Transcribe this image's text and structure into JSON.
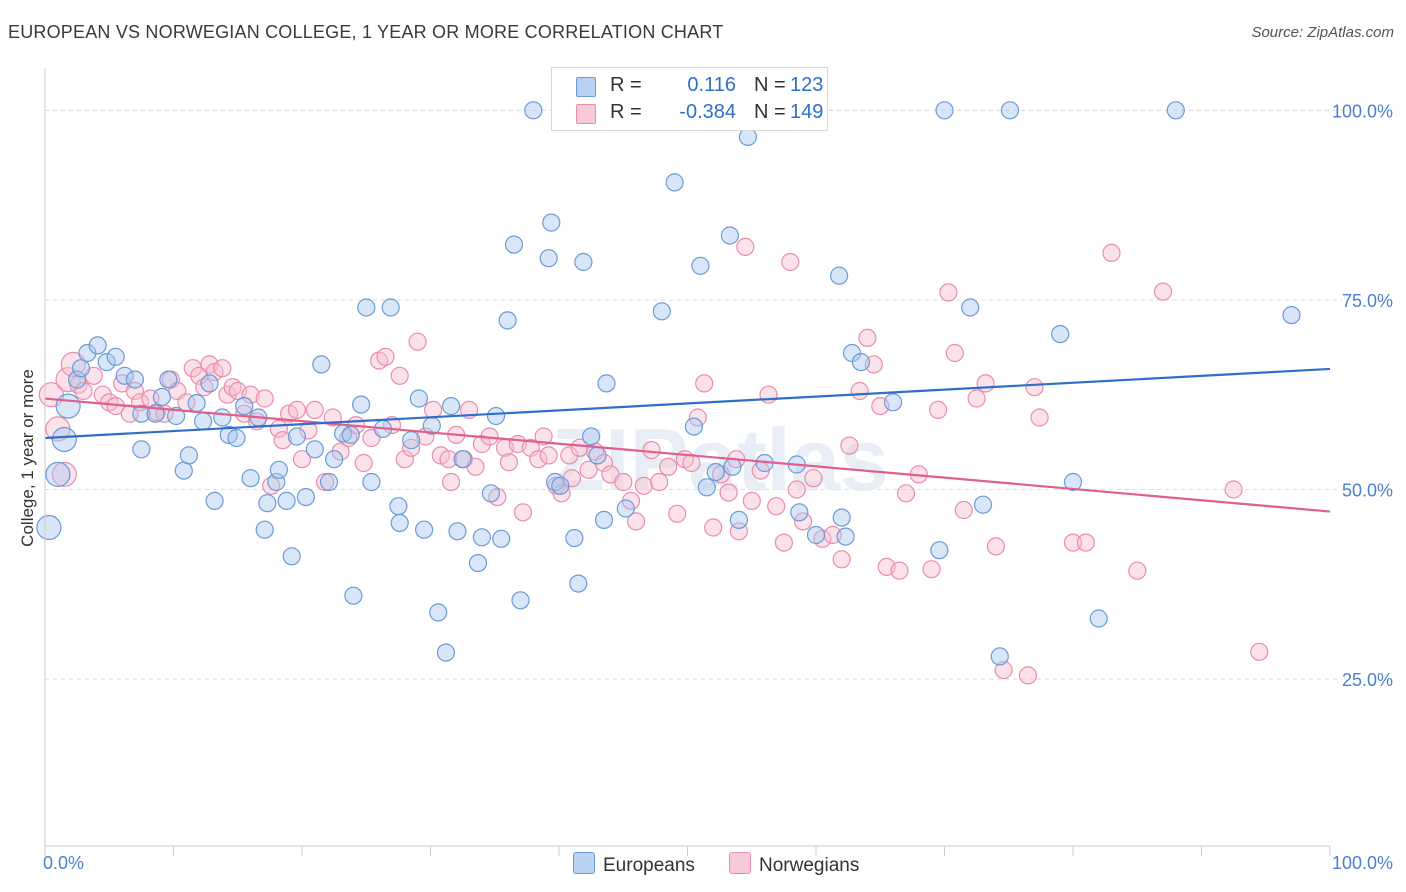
{
  "title": "EUROPEAN VS NORWEGIAN COLLEGE, 1 YEAR OR MORE CORRELATION CHART",
  "source": "Source: ZipAtlas.com",
  "watermark": "ZIPatlas",
  "legend_top": {
    "rows": [
      {
        "r_label": "R =",
        "r_value": "0.116",
        "n_label": "N =",
        "n_value": "123"
      },
      {
        "r_label": "R =",
        "r_value": "-0.384",
        "n_label": "N =",
        "n_value": "149"
      }
    ]
  },
  "legend_bottom": {
    "europeans": "Europeans",
    "norwegians": "Norwegians"
  },
  "colors": {
    "europeans_fill": "#a9c8ef",
    "europeans_stroke": "#6a9bd8",
    "europeans_line": "#2f6fca",
    "norwegians_fill": "#f6bfd0",
    "norwegians_stroke": "#e98dab",
    "norwegians_line": "#e05f8c",
    "tick_label": "#4a7fcf",
    "grid": "#dcdcdc"
  },
  "chart_data": {
    "type": "scatter",
    "title": "EUROPEAN VS NORWEGIAN COLLEGE, 1 YEAR OR MORE CORRELATION CHART",
    "xlabel": "",
    "ylabel": "College, 1 year or more",
    "xlim": [
      0,
      100
    ],
    "ylim": [
      3,
      104
    ],
    "x_tick_labels": [
      "0.0%",
      "100.0%"
    ],
    "y_ticks": [
      25,
      50,
      75,
      100
    ],
    "y_tick_labels": [
      "25.0%",
      "50.0%",
      "75.0%",
      "100.0%"
    ],
    "grid": true,
    "legend_position": "top-center",
    "series": [
      {
        "name": "Europeans",
        "trend": {
          "x": [
            0,
            100
          ],
          "y": [
            56.8,
            65.9
          ]
        },
        "points": [
          [
            0.3,
            45
          ],
          [
            1.5,
            56.6
          ],
          [
            1.0,
            52
          ],
          [
            1.8,
            61
          ],
          [
            2.5,
            64.5
          ],
          [
            2.8,
            66
          ],
          [
            3.3,
            68
          ],
          [
            4.1,
            69
          ],
          [
            4.8,
            66.8
          ],
          [
            5.5,
            67.5
          ],
          [
            6.2,
            65
          ],
          [
            7.0,
            64.5
          ],
          [
            7.5,
            55.3
          ],
          [
            7.5,
            60
          ],
          [
            8.6,
            60
          ],
          [
            9.1,
            62.2
          ],
          [
            9.6,
            64.5
          ],
          [
            10.2,
            59.7
          ],
          [
            10.8,
            52.5
          ],
          [
            11.2,
            54.5
          ],
          [
            11.8,
            61.4
          ],
          [
            12.3,
            59
          ],
          [
            12.8,
            64
          ],
          [
            13.2,
            48.5
          ],
          [
            13.8,
            59.5
          ],
          [
            14.3,
            57.2
          ],
          [
            14.9,
            56.8
          ],
          [
            15.5,
            61
          ],
          [
            16.0,
            51.5
          ],
          [
            16.6,
            59.5
          ],
          [
            17.1,
            44.7
          ],
          [
            17.3,
            48.2
          ],
          [
            18.0,
            51
          ],
          [
            18.2,
            52.6
          ],
          [
            18.8,
            48.5
          ],
          [
            19.2,
            41.2
          ],
          [
            19.6,
            57
          ],
          [
            20.3,
            49
          ],
          [
            21.0,
            55.3
          ],
          [
            21.5,
            66.5
          ],
          [
            22.1,
            51
          ],
          [
            22.5,
            54
          ],
          [
            23.2,
            57.4
          ],
          [
            23.8,
            57.2
          ],
          [
            24.0,
            36
          ],
          [
            24.6,
            61.2
          ],
          [
            25.0,
            74
          ],
          [
            25.4,
            51
          ],
          [
            26.3,
            58
          ],
          [
            26.9,
            74
          ],
          [
            27.5,
            47.8
          ],
          [
            27.6,
            45.6
          ],
          [
            28.5,
            56.5
          ],
          [
            29.1,
            62
          ],
          [
            29.5,
            44.7
          ],
          [
            30.1,
            58.4
          ],
          [
            30.6,
            33.8
          ],
          [
            31.2,
            28.5
          ],
          [
            31.6,
            61
          ],
          [
            32.1,
            44.5
          ],
          [
            32.5,
            54
          ],
          [
            33.7,
            40.3
          ],
          [
            34.0,
            43.7
          ],
          [
            34.7,
            49.5
          ],
          [
            35.1,
            59.7
          ],
          [
            35.5,
            43.5
          ],
          [
            36.0,
            72.3
          ],
          [
            36.5,
            82.3
          ],
          [
            37.0,
            35.4
          ],
          [
            38.0,
            100
          ],
          [
            39.2,
            80.5
          ],
          [
            39.4,
            85.2
          ],
          [
            39.7,
            51
          ],
          [
            40.1,
            50.5
          ],
          [
            41.2,
            43.6
          ],
          [
            41.5,
            37.6
          ],
          [
            41.9,
            80
          ],
          [
            42.5,
            57
          ],
          [
            43.0,
            54.5
          ],
          [
            43.5,
            46
          ],
          [
            43.7,
            64
          ],
          [
            45.2,
            47.5
          ],
          [
            47.5,
            100
          ],
          [
            48.0,
            73.5
          ],
          [
            49.0,
            90.5
          ],
          [
            50.5,
            58.3
          ],
          [
            51.0,
            79.5
          ],
          [
            51.5,
            50.3
          ],
          [
            52.2,
            52.3
          ],
          [
            53.3,
            83.5
          ],
          [
            53.5,
            53
          ],
          [
            54.0,
            46
          ],
          [
            54.7,
            96.5
          ],
          [
            56.0,
            53.5
          ],
          [
            58.5,
            53.3
          ],
          [
            58.7,
            47
          ],
          [
            60.0,
            44
          ],
          [
            61.8,
            78.2
          ],
          [
            62.0,
            46.3
          ],
          [
            62.3,
            43.8
          ],
          [
            62.8,
            68
          ],
          [
            63.5,
            66.8
          ],
          [
            66.0,
            61.5
          ],
          [
            69.6,
            42
          ],
          [
            70.0,
            100
          ],
          [
            72.0,
            74
          ],
          [
            73.0,
            48
          ],
          [
            74.3,
            28
          ],
          [
            75.1,
            100
          ],
          [
            79.0,
            70.5
          ],
          [
            80.0,
            51
          ],
          [
            82.0,
            33
          ],
          [
            88.0,
            100
          ],
          [
            97.0,
            73
          ]
        ]
      },
      {
        "name": "Norwegians",
        "trend": {
          "x": [
            0,
            100
          ],
          "y": [
            62.0,
            47.1
          ]
        },
        "points": [
          [
            0.5,
            62.5
          ],
          [
            1.0,
            58
          ],
          [
            1.5,
            52
          ],
          [
            1.8,
            64.5
          ],
          [
            2.2,
            66.5
          ],
          [
            2.6,
            63.8
          ],
          [
            3.0,
            63
          ],
          [
            3.8,
            65
          ],
          [
            4.5,
            62.5
          ],
          [
            5.0,
            61.5
          ],
          [
            5.5,
            61
          ],
          [
            6.0,
            64
          ],
          [
            6.6,
            60
          ],
          [
            7.0,
            63
          ],
          [
            7.4,
            61.5
          ],
          [
            8.2,
            62
          ],
          [
            8.7,
            60.2
          ],
          [
            9.3,
            60
          ],
          [
            9.8,
            64.5
          ],
          [
            10.3,
            63
          ],
          [
            11.0,
            61.5
          ],
          [
            11.5,
            66
          ],
          [
            12.0,
            65
          ],
          [
            12.4,
            63.5
          ],
          [
            12.8,
            66.5
          ],
          [
            13.2,
            65.5
          ],
          [
            13.8,
            66
          ],
          [
            14.2,
            62.5
          ],
          [
            14.6,
            63.5
          ],
          [
            15.0,
            63
          ],
          [
            15.5,
            60
          ],
          [
            16.0,
            62.5
          ],
          [
            16.5,
            59
          ],
          [
            17.1,
            62
          ],
          [
            17.6,
            50.5
          ],
          [
            18.2,
            58
          ],
          [
            18.5,
            56.5
          ],
          [
            19.0,
            60
          ],
          [
            19.6,
            60.5
          ],
          [
            20.0,
            54
          ],
          [
            20.5,
            57.8
          ],
          [
            21.0,
            60.5
          ],
          [
            21.8,
            51
          ],
          [
            22.4,
            59.5
          ],
          [
            23.0,
            55
          ],
          [
            23.6,
            56.8
          ],
          [
            24.2,
            58.5
          ],
          [
            24.8,
            53.5
          ],
          [
            25.4,
            56.8
          ],
          [
            26.0,
            67
          ],
          [
            26.5,
            67.5
          ],
          [
            27.0,
            58.5
          ],
          [
            27.6,
            65
          ],
          [
            28.0,
            54
          ],
          [
            28.5,
            55.5
          ],
          [
            29.0,
            69.5
          ],
          [
            29.6,
            57
          ],
          [
            30.2,
            60.5
          ],
          [
            30.8,
            54.5
          ],
          [
            31.4,
            54
          ],
          [
            31.6,
            51
          ],
          [
            32.0,
            57.2
          ],
          [
            32.6,
            54
          ],
          [
            33.0,
            60.5
          ],
          [
            33.5,
            53
          ],
          [
            34.0,
            56
          ],
          [
            34.6,
            57
          ],
          [
            35.2,
            49
          ],
          [
            35.8,
            55.5
          ],
          [
            36.1,
            53.6
          ],
          [
            36.8,
            56
          ],
          [
            37.2,
            47
          ],
          [
            37.8,
            55.5
          ],
          [
            38.4,
            54
          ],
          [
            38.8,
            57
          ],
          [
            39.2,
            54.5
          ],
          [
            39.8,
            50.5
          ],
          [
            40.2,
            49.5
          ],
          [
            40.8,
            54.5
          ],
          [
            41.0,
            51.5
          ],
          [
            41.6,
            55.5
          ],
          [
            42.3,
            52.6
          ],
          [
            42.8,
            55
          ],
          [
            43.5,
            53.5
          ],
          [
            44.0,
            52
          ],
          [
            45.0,
            51
          ],
          [
            45.6,
            48.5
          ],
          [
            46.0,
            45.8
          ],
          [
            46.6,
            50.5
          ],
          [
            47.2,
            55.2
          ],
          [
            47.8,
            51
          ],
          [
            48.5,
            53
          ],
          [
            49.2,
            46.8
          ],
          [
            49.8,
            54
          ],
          [
            50.3,
            53.5
          ],
          [
            50.8,
            59.5
          ],
          [
            51.3,
            64
          ],
          [
            52.0,
            45
          ],
          [
            52.6,
            52
          ],
          [
            53.2,
            49.6
          ],
          [
            53.8,
            54
          ],
          [
            54.0,
            44.5
          ],
          [
            54.5,
            82
          ],
          [
            55.0,
            48.5
          ],
          [
            55.7,
            52.5
          ],
          [
            56.3,
            62.5
          ],
          [
            56.9,
            47.8
          ],
          [
            57.5,
            43
          ],
          [
            58.0,
            80
          ],
          [
            58.5,
            50
          ],
          [
            59.0,
            45.8
          ],
          [
            59.8,
            51.5
          ],
          [
            60.5,
            43.5
          ],
          [
            61.3,
            44
          ],
          [
            62.0,
            40.8
          ],
          [
            62.6,
            55.8
          ],
          [
            63.4,
            63
          ],
          [
            64.0,
            70
          ],
          [
            64.5,
            66.5
          ],
          [
            65.0,
            61
          ],
          [
            65.5,
            39.8
          ],
          [
            66.5,
            39.3
          ],
          [
            67.0,
            49.5
          ],
          [
            68.0,
            52
          ],
          [
            69.0,
            39.5
          ],
          [
            69.5,
            60.5
          ],
          [
            70.3,
            76
          ],
          [
            70.8,
            68
          ],
          [
            71.5,
            47.3
          ],
          [
            72.5,
            62
          ],
          [
            73.2,
            64
          ],
          [
            74.0,
            42.5
          ],
          [
            74.6,
            26.2
          ],
          [
            76.5,
            25.5
          ],
          [
            77.0,
            63.5
          ],
          [
            77.4,
            59.5
          ],
          [
            80.0,
            43
          ],
          [
            81.0,
            43
          ],
          [
            83.0,
            81.2
          ],
          [
            85.0,
            39.3
          ],
          [
            87.0,
            76.1
          ],
          [
            92.5,
            50
          ],
          [
            94.5,
            28.6
          ]
        ]
      }
    ]
  }
}
